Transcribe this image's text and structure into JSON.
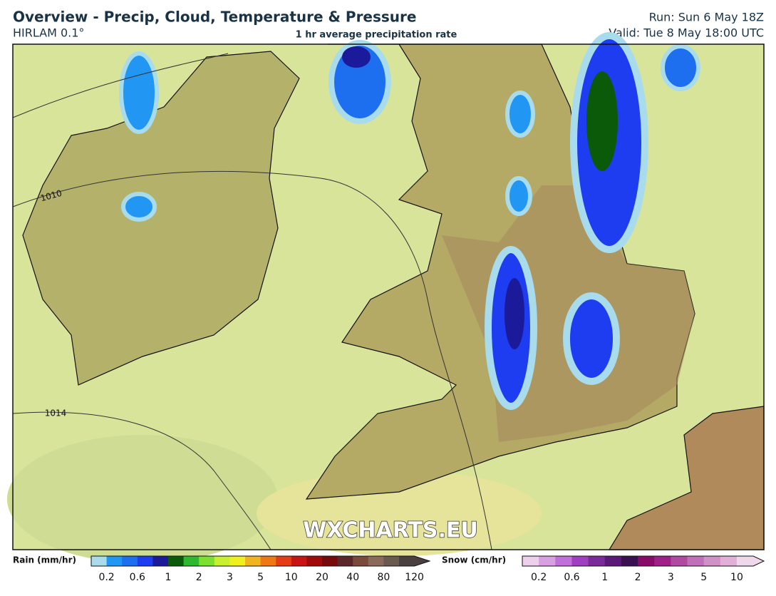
{
  "header": {
    "title": "Overview - Precip, Cloud, Temperature & Pressure",
    "model": "HIRLAM 0.1°",
    "subtitle": "1 hr average precipitation rate",
    "run": "Run: Sun 6 May 18Z",
    "valid": "Valid: Tue 8 May 18:00 UTC"
  },
  "map": {
    "isobars": [
      "1010",
      "1014"
    ],
    "watermark": "WXCHARTS.EU"
  },
  "legend": {
    "rain": {
      "label": "Rain (mm/hr)",
      "ticks": [
        "0.2",
        "0.6",
        "1",
        "2",
        "3",
        "5",
        "10",
        "20",
        "40",
        "80",
        "120"
      ],
      "colors": [
        "#a8dced",
        "#2196f3",
        "#1e6ef0",
        "#1e3cf0",
        "#1a1a9a",
        "#0a5a0a",
        "#2eb82e",
        "#7ce02e",
        "#c8f02e",
        "#f0f01e",
        "#f0b41e",
        "#f07814",
        "#e63c14",
        "#c81414",
        "#a00a0a",
        "#780a0a",
        "#5a2828",
        "#7a4a3a",
        "#8a6a5a",
        "#6a5a50",
        "#4a4040"
      ]
    },
    "snow": {
      "label": "Snow (cm/hr)",
      "ticks": [
        "0.2",
        "0.6",
        "1",
        "2",
        "3",
        "5",
        "10"
      ],
      "colors": [
        "#ecd0ec",
        "#d8a0e0",
        "#c070d8",
        "#a040c0",
        "#7a2a9a",
        "#5a1a7a",
        "#3a1050",
        "#8a0a6a",
        "#a0208a",
        "#b04aa0",
        "#c070b8",
        "#d090c8",
        "#e0b0d8",
        "#f0d8ec"
      ]
    }
  }
}
